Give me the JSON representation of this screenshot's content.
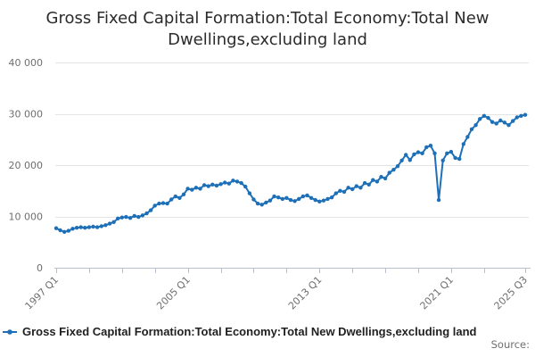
{
  "header": {
    "title_line1": "Gross Fixed Capital Formation:Total Economy:Total New",
    "title_line2": "Dwellings,excluding land"
  },
  "legend": {
    "label": "Gross Fixed Capital Formation:Total Economy:Total New Dwellings,excluding land"
  },
  "footer": {
    "source_label": "Source:"
  },
  "colors": {
    "line": "#1d70b8",
    "grid": "#e4e4e4",
    "axis": "#b8c0cf",
    "text_muted": "#6f6f6f",
    "text_dark": "#1f1f1f"
  },
  "chart_data": {
    "type": "line",
    "title": "Gross Fixed Capital Formation:Total Economy:Total New Dwellings,excluding land",
    "xlabel": "",
    "ylabel": "",
    "x_start": "1997 Q1",
    "x_end": "2025 Q3",
    "x_frequency": "quarterly",
    "ylim": [
      0,
      40000
    ],
    "y_ticks": [
      0,
      10000,
      20000,
      30000,
      40000
    ],
    "y_tick_labels": [
      "0",
      "10 000",
      "20 000",
      "30 000",
      "40 000"
    ],
    "grid": "horizontal",
    "legend_position": "bottom-left",
    "marker": "dot",
    "x_ticks": [
      {
        "index": 0,
        "label": "1997 Q1"
      },
      {
        "index": 8,
        "label": ""
      },
      {
        "index": 16,
        "label": ""
      },
      {
        "index": 24,
        "label": ""
      },
      {
        "index": 32,
        "label": "2005 Q1"
      },
      {
        "index": 40,
        "label": ""
      },
      {
        "index": 48,
        "label": ""
      },
      {
        "index": 56,
        "label": ""
      },
      {
        "index": 64,
        "label": "2013 Q1"
      },
      {
        "index": 72,
        "label": ""
      },
      {
        "index": 80,
        "label": ""
      },
      {
        "index": 88,
        "label": ""
      },
      {
        "index": 96,
        "label": "2021 Q1"
      },
      {
        "index": 104,
        "label": ""
      },
      {
        "index": 114,
        "label": "2025 Q3"
      }
    ],
    "series": [
      {
        "name": "Gross Fixed Capital Formation:Total Economy:Total New Dwellings,excluding land",
        "color": "#1d70b8",
        "values": [
          7700,
          7300,
          7000,
          7200,
          7600,
          7800,
          7900,
          7800,
          7900,
          8000,
          7900,
          8100,
          8300,
          8600,
          8900,
          9600,
          9800,
          9900,
          9700,
          10100,
          9900,
          10200,
          10600,
          11200,
          12100,
          12500,
          12600,
          12500,
          13300,
          13900,
          13600,
          14300,
          15400,
          15200,
          15600,
          15400,
          16100,
          15900,
          16200,
          16000,
          16300,
          16600,
          16400,
          17000,
          16800,
          16500,
          15800,
          14500,
          13300,
          12500,
          12300,
          12700,
          13100,
          13900,
          13700,
          13400,
          13600,
          13200,
          13000,
          13400,
          13900,
          14100,
          13600,
          13200,
          12900,
          13100,
          13400,
          13700,
          14500,
          15000,
          14800,
          15600,
          15300,
          15900,
          15600,
          16500,
          16200,
          17100,
          16800,
          17700,
          17400,
          18500,
          19100,
          19800,
          20900,
          22000,
          21000,
          22100,
          22500,
          22300,
          23500,
          23800,
          22300,
          13200,
          20900,
          22300,
          22600,
          21400,
          21200,
          24100,
          25500,
          27000,
          27800,
          29000,
          29600,
          29200,
          28400,
          28100,
          28700,
          28300,
          27800,
          28600,
          29300,
          29600,
          29800
        ]
      }
    ]
  }
}
